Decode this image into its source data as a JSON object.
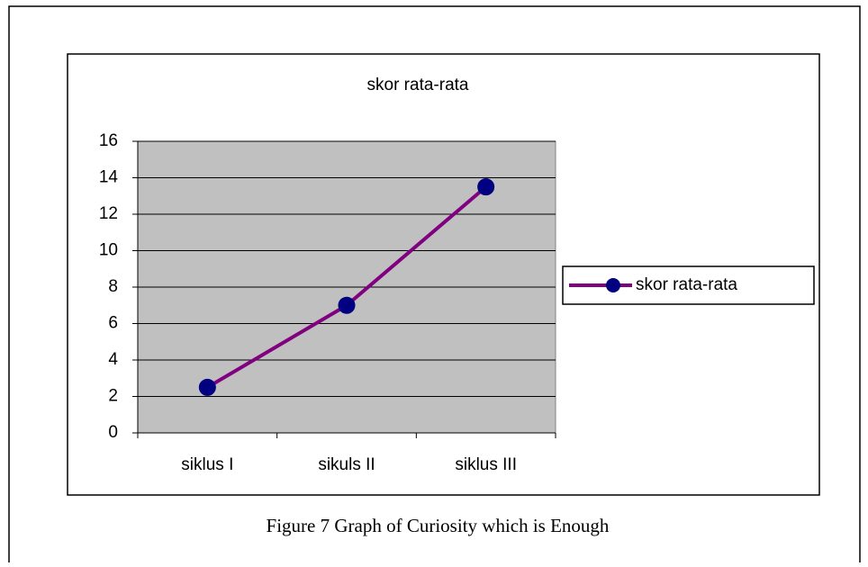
{
  "chart_data": {
    "type": "line",
    "title": "skor rata-rata",
    "categories": [
      "siklus I",
      "sikuls II",
      "siklus III"
    ],
    "series": [
      {
        "name": "skor rata-rata",
        "color": "#800080",
        "marker_color": "#000080",
        "values": [
          2.5,
          7,
          13.5
        ]
      }
    ],
    "ylim": [
      0,
      16
    ],
    "yticks": [
      0,
      2,
      4,
      6,
      8,
      10,
      12,
      14,
      16
    ],
    "grid": true,
    "legend": "right",
    "plot_background": "#c0c0c0"
  },
  "caption": "Figure 7 Graph of Curiosity which is Enough"
}
